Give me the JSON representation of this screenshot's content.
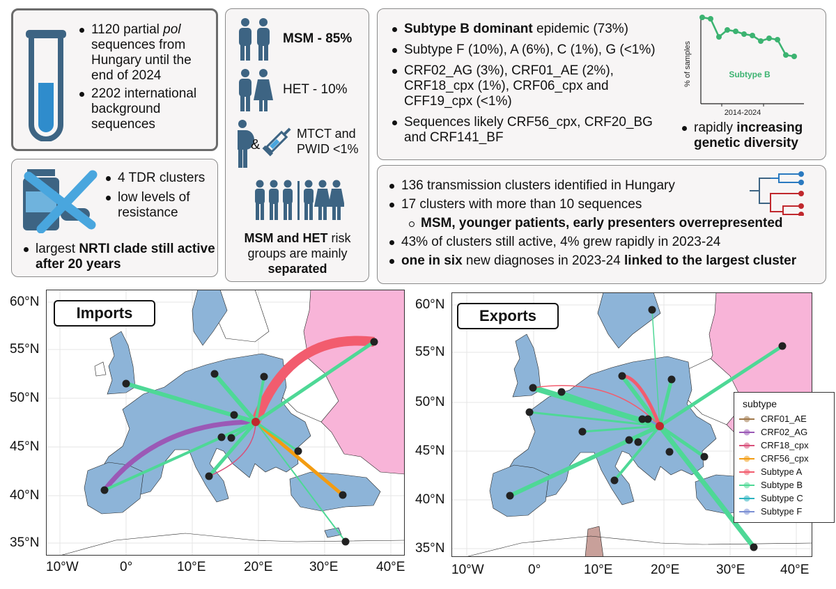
{
  "panel_sequences": {
    "items": [
      [
        "1120 partial ",
        "pol",
        " sequences from Hungary until the end of 2024"
      ],
      "2202 international background sequences"
    ]
  },
  "panel_tdr": {
    "items": [
      "4 TDR clusters",
      "low levels of resistance"
    ],
    "largest_pre": "largest ",
    "largest_bold": "NRTI clade still active after 20 years"
  },
  "panel_risk": {
    "msm": "MSM - 85%",
    "het": "HET - 10%",
    "amp": "&",
    "mtct": "MTCT and PWID <1%",
    "sep_bold1": "MSM and HET",
    "sep_mid": " risk groups are mainly ",
    "sep_bold2": "separated"
  },
  "panel_subtypes": {
    "l1_bold": "Subtype B dominant",
    "l1_rest": " epidemic (73%)",
    "l2": "Subtype F (10%), A (6%), C (1%), G (<1%)",
    "l3": "CRF02_AG (3%), CRF01_AE (2%), CRF18_cpx (1%), CRF06_cpx and CFF19_cpx (<1%)",
    "l4": "Sequences likely CRF56_cpx, CRF20_BG and CRF141_BF",
    "div_pre": "rapidly ",
    "div_bold": "increasing genetic diversity",
    "mini_ylabel": "% of samples",
    "mini_xlabel": "2014-2024",
    "mini_series": "Subtype B",
    "mini_color": "#3cb371"
  },
  "panel_clusters": {
    "l1": "136 transmission clusters identified in Hungary",
    "l2": "17 clusters with more than 10 sequences",
    "l3": "MSM, younger patients, early presenters overrepresented",
    "l4": "43% of clusters still active, 4% grew rapidly in 2023-24",
    "l5_b1": "one in six",
    "l5_mid": " new diagnoses in 2023-24 ",
    "l5_b2": "linked to the largest cluster"
  },
  "maps": {
    "imports_title": "Imports",
    "exports_title": "Exports",
    "y_ticks": [
      "60°N",
      "55°N",
      "50°N",
      "45°N",
      "40°N",
      "35°N"
    ],
    "x_ticks": [
      "10°W",
      "0°",
      "10°E",
      "20°E",
      "30°E",
      "40°E"
    ]
  },
  "legend": {
    "title": "subtype",
    "entries": [
      {
        "label": "CRF01_AE",
        "color": "#a0784a"
      },
      {
        "label": "CRF02_AG",
        "color": "#9b59b6"
      },
      {
        "label": "CRF18_cpx",
        "color": "#d9507a"
      },
      {
        "label": "CRF56_cpx",
        "color": "#f39c12"
      },
      {
        "label": "Subtype A",
        "color": "#f25c6e"
      },
      {
        "label": "Subtype B",
        "color": "#4ed896"
      },
      {
        "label": "Subtype C",
        "color": "#2bb3c0"
      },
      {
        "label": "Subtype F",
        "color": "#7b8fd4"
      }
    ]
  },
  "colors": {
    "land": "#8db4d8",
    "russia": "#f8b4d8",
    "africa": "#c8a09a",
    "hub": "#c0282d",
    "icon": "#3d6483"
  }
}
